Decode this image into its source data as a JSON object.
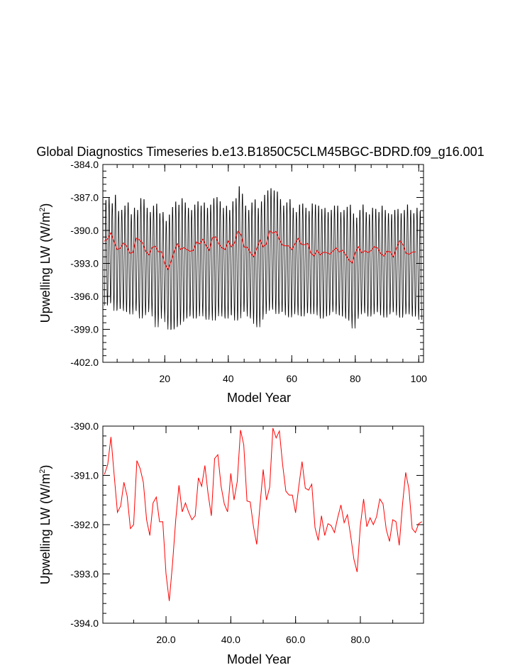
{
  "title": "Global Diagnostics Timeseries b.e13.B1850C5CLM45BGC-BDRD.f09_g16.001",
  "chart_data": [
    {
      "type": "line",
      "xlabel": "Model Year",
      "ylabel": "Upwelling LW (W/m",
      "ylabel_sup": "2",
      "ylabel_tail": ")",
      "xlim": [
        0.5,
        101.5
      ],
      "ylim": [
        -402.0,
        -384.0
      ],
      "xticks": [
        20,
        40,
        60,
        80,
        100
      ],
      "xtick_labels": [
        "20",
        "40",
        "60",
        "80",
        "100"
      ],
      "yticks": [
        -402.0,
        -399.0,
        -396.0,
        -393.0,
        -390.0,
        -387.0,
        -384.0
      ],
      "ytick_labels": [
        "-402.0",
        "-399.0",
        "-396.0",
        "-393.0",
        "-390.0",
        "-387.0",
        "-384.0"
      ],
      "series": [
        {
          "kind": "monthly",
          "color": "#000000",
          "annual_peak": [
            -387.1,
            -386.9,
            -387.4,
            -386.6,
            -388.1,
            -388.0,
            -387.6,
            -387.3,
            -388.4,
            -387.8,
            -388.0,
            -386.9,
            -387.0,
            -387.8,
            -388.2,
            -387.6,
            -387.4,
            -388.3,
            -388.2,
            -389.0,
            -388.4,
            -387.7,
            -387.2,
            -387.5,
            -386.9,
            -387.3,
            -387.8,
            -388.0,
            -387.5,
            -387.2,
            -387.6,
            -387.3,
            -387.8,
            -387.5,
            -386.9,
            -386.8,
            -387.2,
            -387.8,
            -387.6,
            -388.0,
            -387.2,
            -386.9,
            -385.8,
            -386.5,
            -387.6,
            -388.0,
            -387.3,
            -387.0,
            -387.8,
            -387.2,
            -386.6,
            -386.2,
            -386.0,
            -386.2,
            -386.3,
            -387.0,
            -387.6,
            -387.3,
            -387.0,
            -387.8,
            -388.2,
            -387.5,
            -387.4,
            -387.8,
            -388.1,
            -387.4,
            -387.5,
            -387.6,
            -387.9,
            -387.8,
            -388.2,
            -388.0,
            -387.6,
            -387.6,
            -388.2,
            -388.0,
            -387.7,
            -387.5,
            -388.3,
            -388.7,
            -388.0,
            -387.5,
            -388.2,
            -388.4,
            -387.8,
            -387.9,
            -388.2,
            -387.6,
            -388.0,
            -388.3,
            -388.4,
            -388.0,
            -387.9,
            -388.3,
            -388.0,
            -387.5,
            -388.0,
            -388.3,
            -387.8,
            -388.1
          ],
          "annual_trough": [
            -397.0,
            -396.8,
            -396.6,
            -397.5,
            -397.3,
            -397.2,
            -397.5,
            -397.6,
            -397.8,
            -397.3,
            -397.5,
            -398.2,
            -397.9,
            -397.6,
            -397.2,
            -398.0,
            -399.0,
            -398.2,
            -397.5,
            -398.5,
            -399.2,
            -399.2,
            -399.0,
            -398.8,
            -398.5,
            -398.2,
            -398.0,
            -397.8,
            -398.2,
            -398.0,
            -397.6,
            -398.0,
            -398.3,
            -397.8,
            -398.4,
            -398.0,
            -397.6,
            -398.0,
            -398.2,
            -397.8,
            -397.9,
            -398.4,
            -398.2,
            -397.6,
            -397.5,
            -398.0,
            -398.2,
            -398.7,
            -399.0,
            -398.3,
            -397.8,
            -397.5,
            -397.2,
            -397.4,
            -397.8,
            -397.6,
            -397.5,
            -397.9,
            -398.1,
            -397.8,
            -397.5,
            -397.9,
            -398.0,
            -397.7,
            -397.6,
            -397.8,
            -397.5,
            -397.9,
            -398.2,
            -398.0,
            -397.9,
            -397.6,
            -397.4,
            -397.8,
            -397.9,
            -398.0,
            -398.2,
            -398.4,
            -399.1,
            -398.2,
            -397.8,
            -397.5,
            -397.7,
            -398.0,
            -397.8,
            -397.5,
            -397.6,
            -397.9,
            -398.1,
            -397.8,
            -397.6,
            -397.5,
            -397.9,
            -398.1,
            -397.8,
            -397.6,
            -397.8,
            -398.0,
            -397.8,
            -398.3
          ]
        },
        {
          "kind": "annual_mean",
          "color": "#ff0000",
          "values": [
            -390.98,
            -390.78,
            -390.22,
            -391.0,
            -391.75,
            -391.62,
            -391.14,
            -391.42,
            -392.08,
            -392.0,
            -390.7,
            -390.86,
            -391.14,
            -391.9,
            -392.22,
            -391.56,
            -391.44,
            -391.94,
            -391.94,
            -393.0,
            -393.55,
            -392.8,
            -391.9,
            -391.2,
            -391.74,
            -391.56,
            -391.75,
            -391.9,
            -391.82,
            -391.05,
            -391.22,
            -390.8,
            -391.38,
            -391.82,
            -390.66,
            -390.58,
            -391.22,
            -391.58,
            -391.74,
            -390.96,
            -391.5,
            -391.12,
            -390.08,
            -390.38,
            -391.52,
            -391.54,
            -392.04,
            -392.4,
            -391.62,
            -390.88,
            -391.5,
            -391.24,
            -390.04,
            -390.24,
            -390.1,
            -390.78,
            -391.32,
            -391.4,
            -391.4,
            -391.76,
            -391.22,
            -390.72,
            -391.26,
            -391.3,
            -391.18,
            -392.06,
            -392.32,
            -391.82,
            -392.22,
            -391.98,
            -392.02,
            -392.16,
            -391.86,
            -391.6,
            -391.96,
            -391.8,
            -392.22,
            -392.7,
            -392.96,
            -392.02,
            -391.48,
            -392.04,
            -391.86,
            -392.0,
            -391.84,
            -391.48,
            -391.58,
            -392.1,
            -392.34,
            -391.9,
            -391.94,
            -392.42,
            -391.6,
            -390.94,
            -391.28,
            -392.08,
            -392.16,
            -391.98,
            -391.94
          ]
        }
      ]
    },
    {
      "type": "line",
      "xlabel": "Model Year",
      "ylabel": "Upwelling LW (W/m",
      "ylabel_sup": "2",
      "ylabel_tail": ")",
      "xlim": [
        0.5,
        99.5
      ],
      "ylim": [
        -394.0,
        -390.0
      ],
      "xticks": [
        20,
        40,
        60,
        80
      ],
      "xtick_labels": [
        "20.0",
        "40.0",
        "60.0",
        "80.0"
      ],
      "yticks": [
        -394.0,
        -393.0,
        -392.0,
        -391.0,
        -390.0
      ],
      "ytick_labels": [
        "-394.0",
        "-393.0",
        "-392.0",
        "-391.0",
        "-390.0"
      ],
      "series": [
        {
          "kind": "annual_mean",
          "color": "#ff0000",
          "values": [
            -390.98,
            -390.78,
            -390.22,
            -391.0,
            -391.75,
            -391.62,
            -391.14,
            -391.42,
            -392.08,
            -392.0,
            -390.7,
            -390.86,
            -391.14,
            -391.9,
            -392.22,
            -391.56,
            -391.44,
            -391.94,
            -391.94,
            -393.0,
            -393.55,
            -392.8,
            -391.9,
            -391.2,
            -391.74,
            -391.56,
            -391.75,
            -391.9,
            -391.82,
            -391.05,
            -391.22,
            -390.8,
            -391.38,
            -391.82,
            -390.66,
            -390.58,
            -391.22,
            -391.58,
            -391.74,
            -390.96,
            -391.5,
            -391.12,
            -390.08,
            -390.38,
            -391.52,
            -391.54,
            -392.04,
            -392.4,
            -391.62,
            -390.88,
            -391.5,
            -391.24,
            -390.04,
            -390.24,
            -390.1,
            -390.78,
            -391.32,
            -391.4,
            -391.4,
            -391.76,
            -391.22,
            -390.72,
            -391.26,
            -391.3,
            -391.18,
            -392.06,
            -392.32,
            -391.82,
            -392.22,
            -391.98,
            -392.02,
            -392.16,
            -391.86,
            -391.6,
            -391.96,
            -391.8,
            -392.22,
            -392.7,
            -392.96,
            -392.02,
            -391.48,
            -392.04,
            -391.86,
            -392.0,
            -391.84,
            -391.48,
            -391.58,
            -392.1,
            -392.34,
            -391.9,
            -391.94,
            -392.42,
            -391.6,
            -390.94,
            -391.28,
            -392.08,
            -392.16,
            -391.98,
            -391.94
          ]
        }
      ]
    }
  ]
}
